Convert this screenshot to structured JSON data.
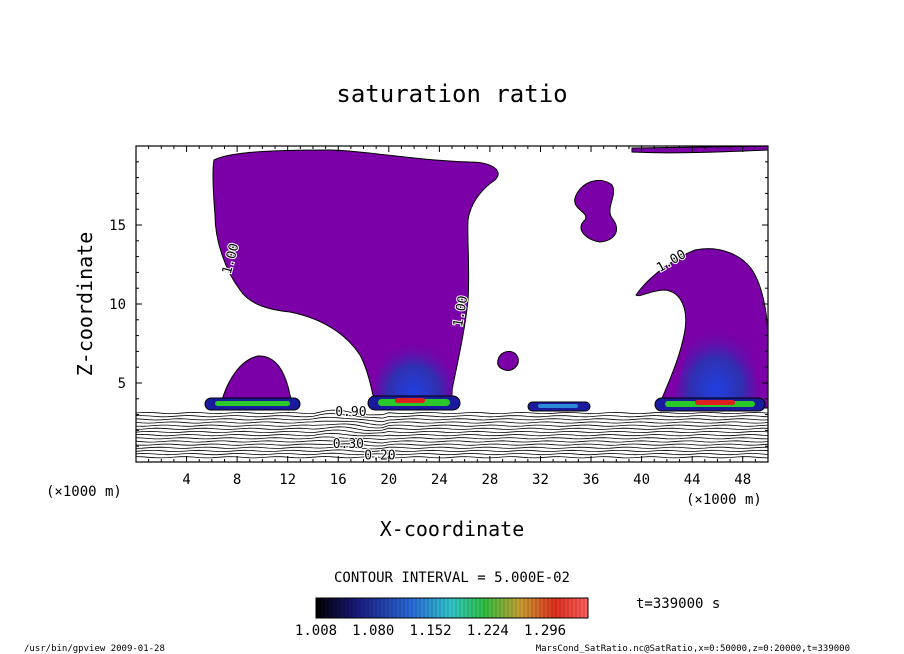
{
  "chart_data": {
    "type": "heatmap",
    "title": "saturation ratio",
    "xlabel": "X-coordinate",
    "ylabel": "Z-coordinate",
    "x_unit_left": "(×1000 m)",
    "x_unit_right": "(×1000 m)",
    "xlim": [
      0,
      50
    ],
    "ylim": [
      0,
      20
    ],
    "x_ticks": [
      "4",
      "8",
      "12",
      "16",
      "20",
      "24",
      "28",
      "32",
      "36",
      "40",
      "44",
      "48"
    ],
    "x_tick_values": [
      4,
      8,
      12,
      16,
      20,
      24,
      28,
      32,
      36,
      40,
      44,
      48
    ],
    "y_ticks": [
      "5",
      "10",
      "15"
    ],
    "y_tick_values": [
      5,
      10,
      15
    ],
    "contour_labels": [
      {
        "text": "1.00",
        "x": 7.8,
        "y": 12.8,
        "rotate": -75
      },
      {
        "text": "1.00",
        "x": 26.0,
        "y": 9.5,
        "rotate": -80
      },
      {
        "text": "1.00",
        "x": 42.5,
        "y": 12.5,
        "rotate": -30
      },
      {
        "text": "0.20",
        "x": 19.3,
        "y": 0.15,
        "rotate": 0
      },
      {
        "text": "0.30",
        "x": 16.8,
        "y": 0.9,
        "rotate": 0
      },
      {
        "text": "0.90",
        "x": 17.0,
        "y": 2.9,
        "rotate": 0
      }
    ],
    "contour_interval": "CONTOUR INTERVAL = 5.000E-02",
    "time_label": "t=339000 s",
    "colorbar": {
      "min": 1.008,
      "max": 1.35,
      "tick_labels": [
        "1.008",
        "1.080",
        "1.152",
        "1.224",
        "1.296"
      ],
      "tick_values": [
        1.008,
        1.08,
        1.152,
        1.224,
        1.296
      ]
    },
    "colors": {
      "saturated_fill": "#7b00a8",
      "deep_blue": "#1a1a9e",
      "green": "#2ac82a",
      "red": "#e02020"
    }
  },
  "footer": {
    "left": "/usr/bin/gpview  2009-01-28",
    "right": "MarsCond_SatRatio.nc@SatRatio,x=0:50000,z=0:20000,t=339000"
  }
}
